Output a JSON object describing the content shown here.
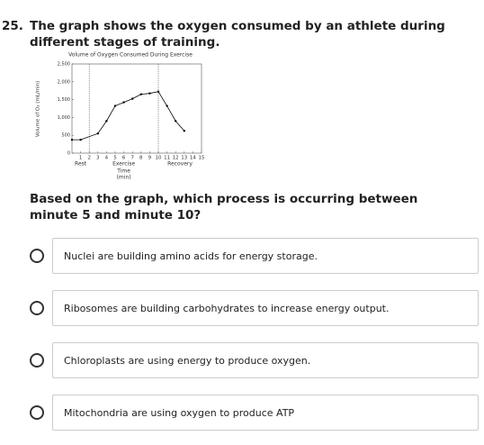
{
  "question": {
    "number": "25.",
    "text": "The graph shows the oxygen consumed by an athlete during different stages of training."
  },
  "chart_data": {
    "type": "line",
    "title": "Volume of Oxygen Consumed During Exercise",
    "y_label": "Volume of O₂ (mL/min)",
    "x_label": "Time",
    "x_label_unit": "(min)",
    "phases": [
      "Rest",
      "Exercise",
      "Recovery"
    ],
    "phase_boundaries": [
      2,
      10
    ],
    "x": [
      0,
      1,
      3,
      4,
      5,
      6,
      7,
      8,
      9,
      10,
      11,
      12,
      13
    ],
    "series": [
      {
        "color": "#000000",
        "values": [
          375,
          375,
          550,
          900,
          1325,
          1425,
          1525,
          1650,
          1675,
          1725,
          1325,
          900,
          625
        ]
      }
    ],
    "xlim": [
      0,
      15
    ],
    "xticks": [
      1,
      2,
      3,
      4,
      5,
      6,
      7,
      8,
      9,
      10,
      11,
      12,
      13,
      14,
      15
    ],
    "ylim": [
      0,
      2500
    ],
    "yticks": [
      0,
      500,
      {
        "value": 1000,
        "label": "1,000"
      },
      {
        "value": 1500,
        "label": "1,500"
      },
      {
        "value": 2000,
        "label": "2,000"
      },
      {
        "value": 2500,
        "label": "2,500"
      }
    ]
  },
  "prompt": "Based on the graph, which process is occurring between minute 5 and minute 10?",
  "options": [
    "Nuclei are building amino acids for energy storage.",
    "Ribosomes are building carbohydrates to increase energy output.",
    "Chloroplasts are using energy to produce oxygen.",
    "Mitochondria are using oxygen to produce ATP"
  ]
}
